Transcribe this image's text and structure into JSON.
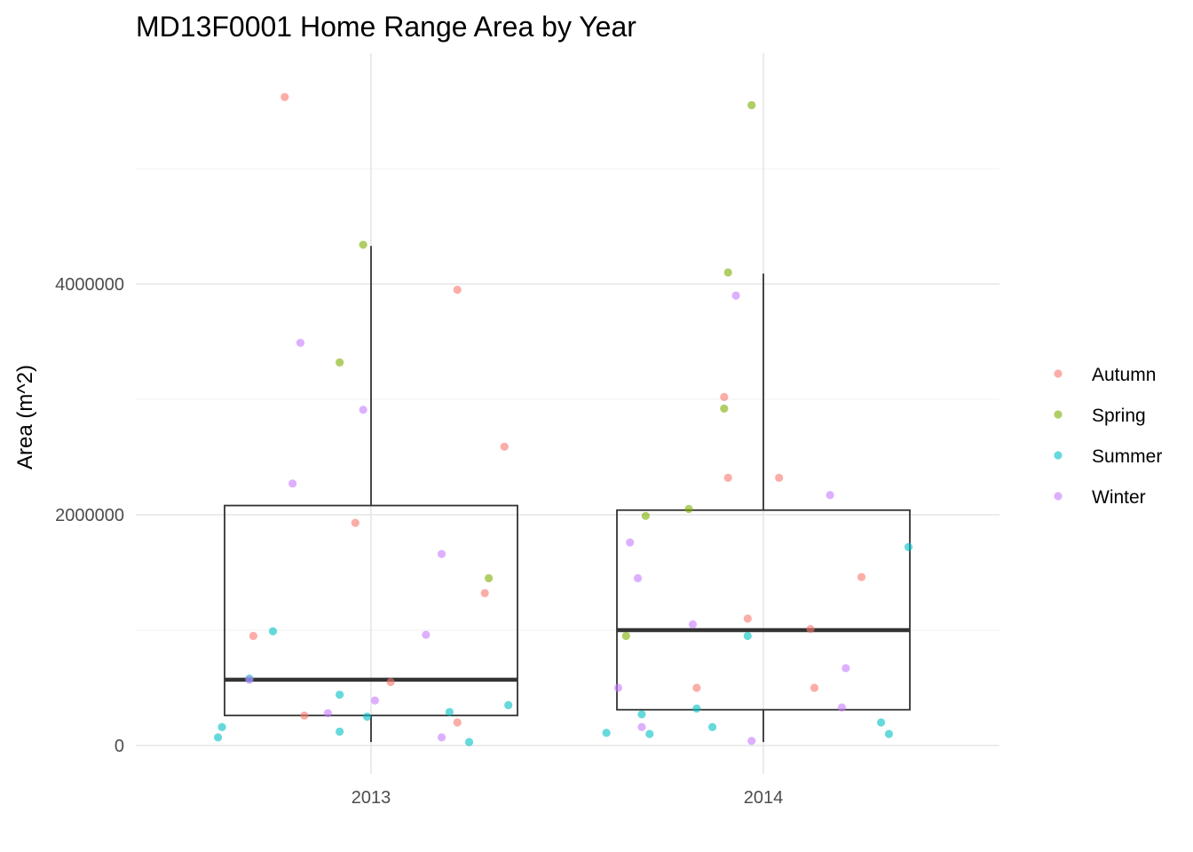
{
  "chart_data": {
    "type": "box+jitter",
    "title": "MD13F0001 Home Range Area by Year",
    "xlabel": "",
    "ylabel": "Area (m^2)",
    "categories": [
      "2013",
      "2014"
    ],
    "y_ticks": [
      "0",
      "2000000",
      "4000000"
    ],
    "y_tick_values": [
      0,
      2000000,
      4000000
    ],
    "ylim": [
      -400000,
      6000000
    ],
    "grid": true,
    "legend": {
      "position": "right",
      "entries": [
        {
          "name": "Autumn",
          "color": "#F8766D"
        },
        {
          "name": "Spring",
          "color": "#7CAE00"
        },
        {
          "name": "Summer",
          "color": "#00BFC4"
        },
        {
          "name": "Winter",
          "color": "#C77CFF"
        }
      ]
    },
    "boxes": [
      {
        "category": "2013",
        "whisker_low": 30000,
        "q1": 260000,
        "median": 570000,
        "q3": 2080000,
        "whisker_high": 4330000
      },
      {
        "category": "2014",
        "whisker_low": 30000,
        "q1": 310000,
        "median": 1000000,
        "q3": 2040000,
        "whisker_high": 4090000
      }
    ],
    "series": [
      {
        "name": "Autumn",
        "points": [
          {
            "x": "2013",
            "jitter": -0.22,
            "y": 5620000
          },
          {
            "x": "2013",
            "jitter": 0.22,
            "y": 3950000
          },
          {
            "x": "2013",
            "jitter": 0.34,
            "y": 2590000
          },
          {
            "x": "2013",
            "jitter": -0.04,
            "y": 1930000
          },
          {
            "x": "2013",
            "jitter": 0.29,
            "y": 1320000
          },
          {
            "x": "2013",
            "jitter": -0.3,
            "y": 950000
          },
          {
            "x": "2013",
            "jitter": 0.05,
            "y": 550000
          },
          {
            "x": "2013",
            "jitter": -0.17,
            "y": 260000
          },
          {
            "x": "2013",
            "jitter": 0.22,
            "y": 200000
          },
          {
            "x": "2014",
            "jitter": -0.1,
            "y": 3020000
          },
          {
            "x": "2014",
            "jitter": -0.09,
            "y": 2320000
          },
          {
            "x": "2014",
            "jitter": 0.04,
            "y": 2320000
          },
          {
            "x": "2014",
            "jitter": 0.25,
            "y": 1460000
          },
          {
            "x": "2014",
            "jitter": -0.04,
            "y": 1100000
          },
          {
            "x": "2014",
            "jitter": 0.12,
            "y": 1010000
          },
          {
            "x": "2014",
            "jitter": -0.17,
            "y": 500000
          },
          {
            "x": "2014",
            "jitter": 0.13,
            "y": 500000
          }
        ]
      },
      {
        "name": "Spring",
        "points": [
          {
            "x": "2013",
            "jitter": -0.02,
            "y": 4340000
          },
          {
            "x": "2013",
            "jitter": -0.08,
            "y": 3320000
          },
          {
            "x": "2013",
            "jitter": 0.3,
            "y": 1450000
          },
          {
            "x": "2014",
            "jitter": -0.03,
            "y": 5550000
          },
          {
            "x": "2014",
            "jitter": -0.09,
            "y": 4100000
          },
          {
            "x": "2014",
            "jitter": -0.1,
            "y": 2920000
          },
          {
            "x": "2014",
            "jitter": -0.19,
            "y": 2050000
          },
          {
            "x": "2014",
            "jitter": -0.3,
            "y": 1990000
          },
          {
            "x": "2014",
            "jitter": -0.35,
            "y": 950000
          }
        ]
      },
      {
        "name": "Summer",
        "points": [
          {
            "x": "2013",
            "jitter": -0.25,
            "y": 990000
          },
          {
            "x": "2013",
            "jitter": -0.31,
            "y": 580000
          },
          {
            "x": "2013",
            "jitter": -0.08,
            "y": 440000
          },
          {
            "x": "2013",
            "jitter": 0.35,
            "y": 350000
          },
          {
            "x": "2013",
            "jitter": 0.2,
            "y": 290000
          },
          {
            "x": "2013",
            "jitter": -0.01,
            "y": 250000
          },
          {
            "x": "2013",
            "jitter": -0.38,
            "y": 160000
          },
          {
            "x": "2013",
            "jitter": -0.08,
            "y": 120000
          },
          {
            "x": "2013",
            "jitter": -0.39,
            "y": 70000
          },
          {
            "x": "2013",
            "jitter": 0.25,
            "y": 30000
          },
          {
            "x": "2014",
            "jitter": 0.37,
            "y": 1720000
          },
          {
            "x": "2014",
            "jitter": -0.04,
            "y": 950000
          },
          {
            "x": "2014",
            "jitter": -0.17,
            "y": 320000
          },
          {
            "x": "2014",
            "jitter": -0.31,
            "y": 270000
          },
          {
            "x": "2014",
            "jitter": 0.3,
            "y": 200000
          },
          {
            "x": "2014",
            "jitter": -0.13,
            "y": 160000
          },
          {
            "x": "2014",
            "jitter": -0.4,
            "y": 110000
          },
          {
            "x": "2014",
            "jitter": -0.29,
            "y": 100000
          },
          {
            "x": "2014",
            "jitter": 0.32,
            "y": 100000
          }
        ]
      },
      {
        "name": "Winter",
        "points": [
          {
            "x": "2013",
            "jitter": -0.18,
            "y": 3490000
          },
          {
            "x": "2013",
            "jitter": -0.02,
            "y": 2910000
          },
          {
            "x": "2013",
            "jitter": -0.2,
            "y": 2270000
          },
          {
            "x": "2013",
            "jitter": 0.18,
            "y": 1660000
          },
          {
            "x": "2013",
            "jitter": 0.14,
            "y": 960000
          },
          {
            "x": "2013",
            "jitter": -0.31,
            "y": 570000
          },
          {
            "x": "2013",
            "jitter": 0.01,
            "y": 390000
          },
          {
            "x": "2013",
            "jitter": -0.11,
            "y": 280000
          },
          {
            "x": "2013",
            "jitter": 0.18,
            "y": 70000
          },
          {
            "x": "2014",
            "jitter": -0.07,
            "y": 3900000
          },
          {
            "x": "2014",
            "jitter": 0.17,
            "y": 2170000
          },
          {
            "x": "2014",
            "jitter": -0.34,
            "y": 1760000
          },
          {
            "x": "2014",
            "jitter": -0.32,
            "y": 1450000
          },
          {
            "x": "2014",
            "jitter": -0.18,
            "y": 1050000
          },
          {
            "x": "2014",
            "jitter": 0.21,
            "y": 670000
          },
          {
            "x": "2014",
            "jitter": -0.37,
            "y": 500000
          },
          {
            "x": "2014",
            "jitter": 0.2,
            "y": 330000
          },
          {
            "x": "2014",
            "jitter": -0.31,
            "y": 160000
          },
          {
            "x": "2014",
            "jitter": -0.03,
            "y": 40000
          }
        ]
      }
    ]
  }
}
